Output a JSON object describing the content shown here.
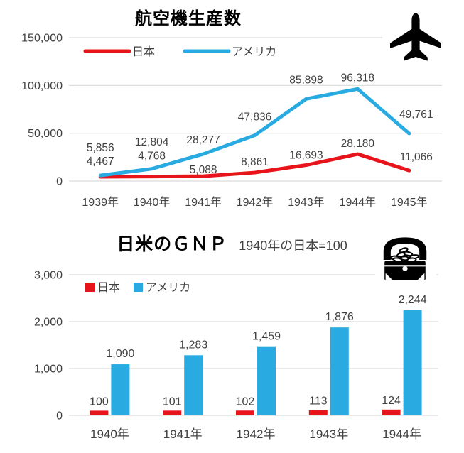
{
  "colors": {
    "japan": "#e8141c",
    "usa": "#29abe2",
    "grid": "#d9d9d9",
    "axis_text": "#404040",
    "label_text": "#404040",
    "title_text": "#000000",
    "icon": "#000000"
  },
  "chart_data": [
    {
      "type": "line",
      "title": "航空機生産数",
      "icon": "airplane",
      "categories": [
        "1939年",
        "1940年",
        "1941年",
        "1942年",
        "1943年",
        "1944年",
        "1945年"
      ],
      "series": [
        {
          "name": "日本",
          "color": "#e8141c",
          "values": [
            4467,
            4768,
            5088,
            8861,
            16693,
            28180,
            11066
          ]
        },
        {
          "name": "アメリカ",
          "color": "#29abe2",
          "values": [
            5856,
            12804,
            28277,
            47836,
            85898,
            96318,
            49761
          ]
        }
      ],
      "ylim": [
        0,
        150000
      ],
      "yticks": [
        0,
        50000,
        100000,
        150000
      ],
      "grid": true,
      "data_labels": true,
      "legend_position": "top-left"
    },
    {
      "type": "bar",
      "title": "日米のＧＮＰ",
      "subtitle": "1940年の日本=100",
      "icon": "treasure-chest",
      "categories": [
        "1940年",
        "1941年",
        "1942年",
        "1943年",
        "1944年"
      ],
      "series": [
        {
          "name": "日本",
          "color": "#e8141c",
          "values": [
            100,
            101,
            102,
            113,
            124
          ]
        },
        {
          "name": "アメリカ",
          "color": "#29abe2",
          "values": [
            1090,
            1283,
            1459,
            1876,
            2244
          ]
        }
      ],
      "ylim": [
        0,
        3000
      ],
      "yticks": [
        0,
        1000,
        2000,
        3000
      ],
      "grid": true,
      "data_labels": true,
      "legend_position": "top-left"
    }
  ]
}
